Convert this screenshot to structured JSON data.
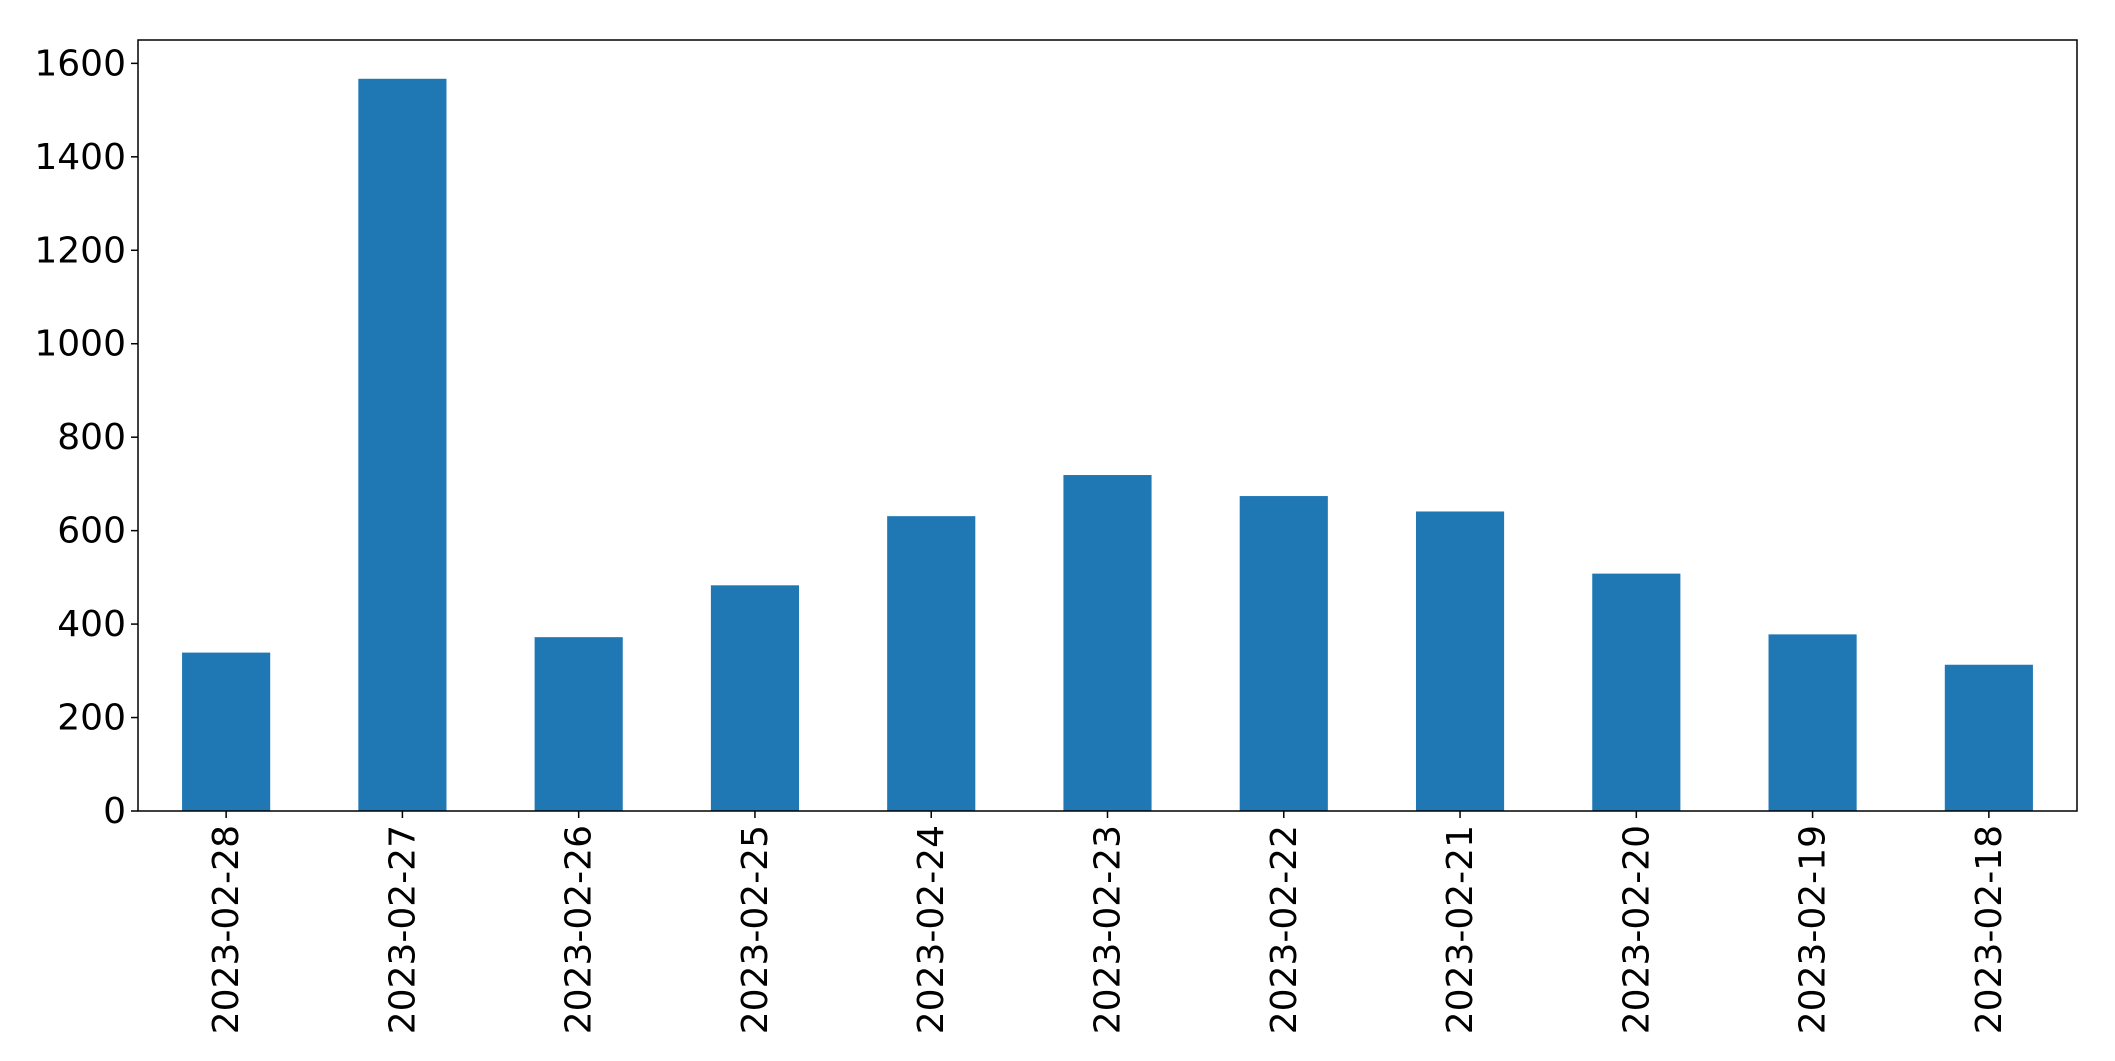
{
  "chart_data": {
    "type": "bar",
    "title": "",
    "xlabel": "",
    "ylabel": "",
    "categories": [
      "2023-02-28",
      "2023-02-27",
      "2023-02-26",
      "2023-02-25",
      "2023-02-24",
      "2023-02-23",
      "2023-02-22",
      "2023-02-21",
      "2023-02-20",
      "2023-02-19",
      "2023-02-18"
    ],
    "values": [
      339,
      1567,
      372,
      483,
      631,
      719,
      674,
      641,
      508,
      378,
      313
    ],
    "ylim": [
      0,
      1650
    ],
    "yticks": [
      0,
      200,
      400,
      600,
      800,
      1000,
      1200,
      1400,
      1600
    ],
    "colors": {
      "bar": "#1f77b4",
      "axis": "#000000",
      "background": "#ffffff"
    },
    "grid": false,
    "legend": "none"
  }
}
